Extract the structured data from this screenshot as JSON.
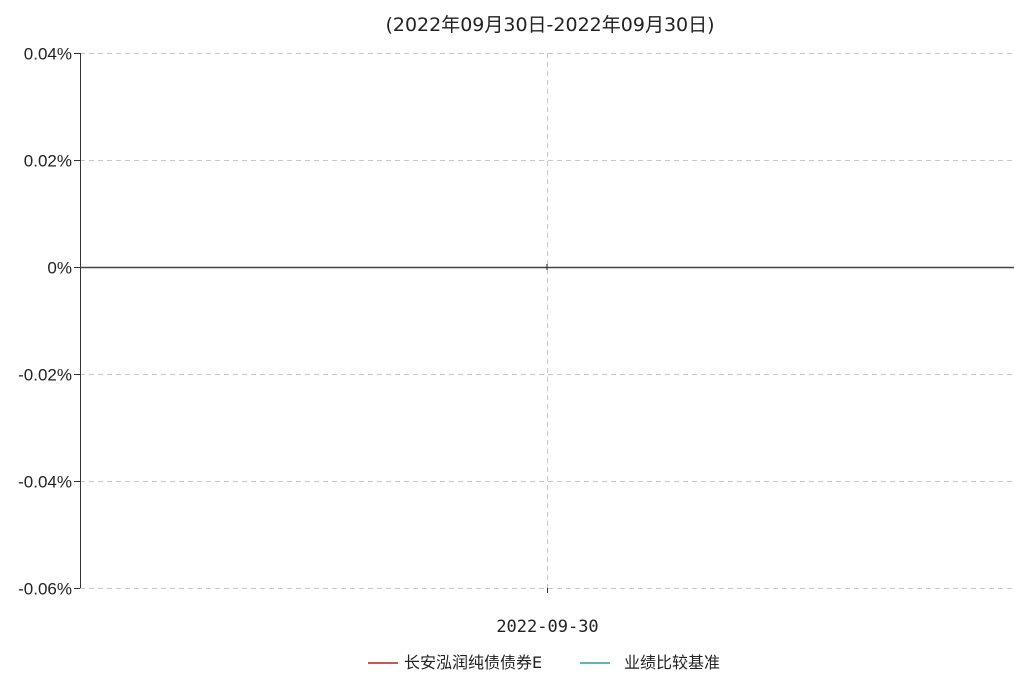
{
  "chart_data": {
    "type": "line",
    "title": "(2022年09月30日-2022年09月30日)",
    "xlabel": "",
    "ylabel": "",
    "x": [
      "2022-09-30"
    ],
    "ylim": [
      -0.06,
      0.04
    ],
    "yticks": [
      0.04,
      0.02,
      0,
      -0.02,
      -0.04,
      -0.06
    ],
    "ytick_labels": [
      "0.04%",
      "0.02%",
      "0%",
      "-0.02%",
      "-0.04%",
      "-0.06%"
    ],
    "y_unit": "%",
    "grid": true,
    "legend_position": "bottom",
    "series": [
      {
        "name": "长安泓润纯债债券E",
        "color": "#b22222",
        "values": [
          0
        ]
      },
      {
        "name": "业绩比较基准",
        "color": "#2a9d9d",
        "values": [
          0
        ]
      }
    ]
  }
}
